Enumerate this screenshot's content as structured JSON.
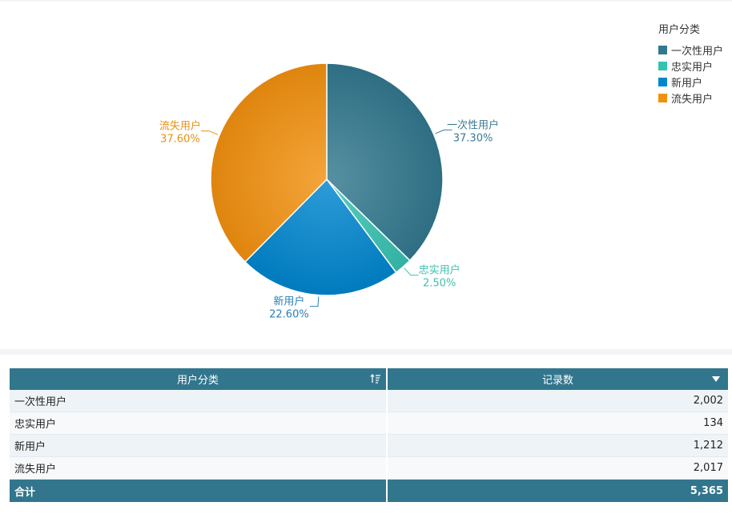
{
  "chart_data": {
    "type": "pie",
    "legend_title": "用户分类",
    "legend_position": "top-right",
    "categories": [
      "一次性用户",
      "忠实用户",
      "新用户",
      "流失用户"
    ],
    "values": [
      2002,
      134,
      1212,
      2017
    ],
    "percent_labels": [
      "37.30%",
      "2.50%",
      "22.60%",
      "37.60%"
    ],
    "colors": [
      "#32788e",
      "#36c2b1",
      "#0086cf",
      "#f2910f"
    ],
    "label_colors": [
      "#3a7a92",
      "#3fc0b0",
      "#2a7fb8",
      "#e8900f"
    ]
  },
  "table": {
    "headers": [
      "用户分类",
      "记录数"
    ],
    "rows": [
      [
        "一次性用户",
        "2,002"
      ],
      [
        "忠实用户",
        "134"
      ],
      [
        "新用户",
        "1,212"
      ],
      [
        "流失用户",
        "2,017"
      ]
    ],
    "total": [
      "合计",
      "5,365"
    ],
    "icons": {
      "sort": "sort-icon",
      "dropdown": "dropdown-icon"
    }
  }
}
